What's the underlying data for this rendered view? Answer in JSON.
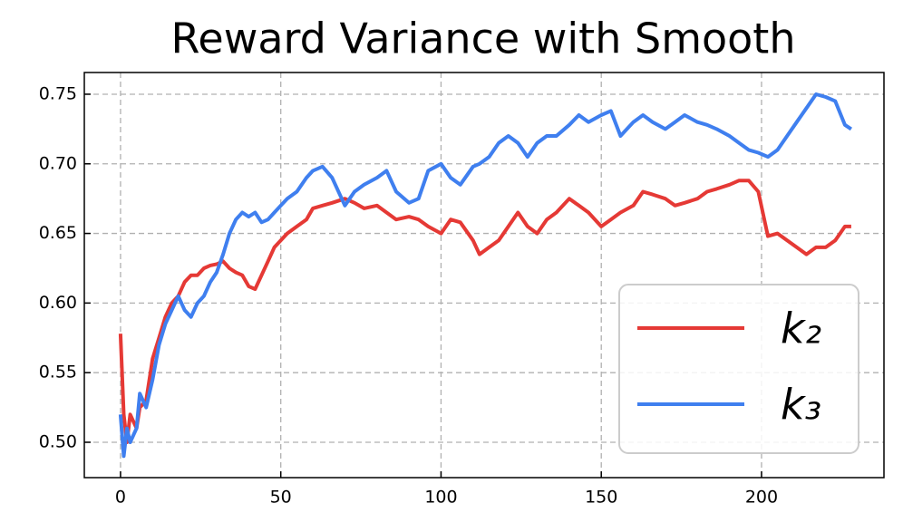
{
  "chart_data": {
    "type": "line",
    "title": "Reward Variance with Smooth",
    "x": [
      0,
      1,
      2,
      3,
      5,
      6,
      8,
      10,
      12,
      14,
      16,
      18,
      20,
      22,
      24,
      26,
      28,
      30,
      32,
      34,
      36,
      38,
      40,
      42,
      44,
      46,
      48,
      50,
      52,
      55,
      58,
      60,
      63,
      66,
      70,
      73,
      76,
      80,
      83,
      86,
      90,
      93,
      96,
      100,
      103,
      106,
      110,
      112,
      115,
      118,
      121,
      124,
      127,
      130,
      133,
      136,
      140,
      143,
      146,
      150,
      153,
      156,
      160,
      163,
      166,
      170,
      173,
      176,
      180,
      183,
      186,
      190,
      193,
      196,
      199,
      202,
      205,
      208,
      211,
      214,
      217,
      220,
      223,
      226,
      228
    ],
    "series": [
      {
        "name": "k₂",
        "color": "#e53935",
        "values": [
          0.578,
          0.52,
          0.5,
          0.52,
          0.51,
          0.525,
          0.53,
          0.56,
          0.575,
          0.59,
          0.6,
          0.605,
          0.615,
          0.62,
          0.62,
          0.625,
          0.627,
          0.628,
          0.63,
          0.625,
          0.622,
          0.62,
          0.612,
          0.61,
          0.62,
          0.63,
          0.64,
          0.645,
          0.65,
          0.655,
          0.66,
          0.668,
          0.67,
          0.672,
          0.675,
          0.672,
          0.668,
          0.67,
          0.665,
          0.66,
          0.662,
          0.66,
          0.655,
          0.65,
          0.66,
          0.658,
          0.645,
          0.635,
          0.64,
          0.645,
          0.655,
          0.665,
          0.655,
          0.65,
          0.66,
          0.665,
          0.675,
          0.67,
          0.665,
          0.655,
          0.66,
          0.665,
          0.67,
          0.68,
          0.678,
          0.675,
          0.67,
          0.672,
          0.675,
          0.68,
          0.682,
          0.685,
          0.688,
          0.688,
          0.68,
          0.648,
          0.65,
          0.645,
          0.64,
          0.635,
          0.64,
          0.64,
          0.645,
          0.655,
          0.655
        ]
      },
      {
        "name": "k₃",
        "color": "#3f7fef",
        "values": [
          0.52,
          0.49,
          0.51,
          0.5,
          0.51,
          0.535,
          0.525,
          0.545,
          0.57,
          0.585,
          0.595,
          0.605,
          0.595,
          0.59,
          0.6,
          0.605,
          0.615,
          0.622,
          0.635,
          0.65,
          0.66,
          0.665,
          0.662,
          0.665,
          0.658,
          0.66,
          0.665,
          0.67,
          0.675,
          0.68,
          0.69,
          0.695,
          0.698,
          0.69,
          0.67,
          0.68,
          0.685,
          0.69,
          0.695,
          0.68,
          0.672,
          0.675,
          0.695,
          0.7,
          0.69,
          0.685,
          0.698,
          0.7,
          0.705,
          0.715,
          0.72,
          0.715,
          0.705,
          0.715,
          0.72,
          0.72,
          0.728,
          0.735,
          0.73,
          0.735,
          0.738,
          0.72,
          0.73,
          0.735,
          0.73,
          0.725,
          0.73,
          0.735,
          0.73,
          0.728,
          0.725,
          0.72,
          0.715,
          0.71,
          0.708,
          0.705,
          0.71,
          0.72,
          0.73,
          0.74,
          0.75,
          0.748,
          0.745,
          0.728,
          0.725
        ]
      }
    ],
    "xlim": [
      -11.3,
      238.2
    ],
    "ylim": [
      0.4746,
      0.7656
    ],
    "xticks": [
      0,
      50,
      100,
      150,
      200
    ],
    "yticks": [
      {
        "value": 0.5,
        "label": "0.50"
      },
      0.55,
      {
        "value": 0.6,
        "label": "0.60"
      },
      0.65,
      {
        "value": 0.7,
        "label": "0.70"
      },
      0.75
    ],
    "grid": true,
    "legend": "lower right"
  }
}
